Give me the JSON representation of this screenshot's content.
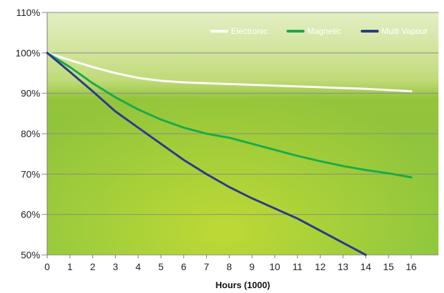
{
  "chart_data": {
    "type": "line",
    "title": "",
    "xlabel": "Hours (1000)",
    "ylabel": "",
    "xlim": [
      0,
      17
    ],
    "ylim": [
      50,
      110
    ],
    "x_ticks": [
      0,
      1,
      2,
      3,
      4,
      5,
      6,
      7,
      8,
      9,
      10,
      11,
      12,
      13,
      14,
      15,
      16
    ],
    "x_tick_labels": [
      "0",
      "1",
      "2",
      "3",
      "4",
      "5",
      "6",
      "7",
      "8",
      "9",
      "10",
      "11",
      "12",
      "13",
      "14",
      "15",
      "16"
    ],
    "y_ticks": [
      50,
      60,
      70,
      80,
      90,
      100,
      110
    ],
    "y_tick_labels": [
      "50%",
      "60%",
      "70%",
      "80%",
      "90%",
      "100%",
      "110%"
    ],
    "grid": true,
    "legend_position": "top-right",
    "series": [
      {
        "name": "Electronic",
        "color": "#ffffff",
        "x": [
          0,
          1,
          2,
          3,
          4,
          5,
          6,
          7,
          8,
          9,
          10,
          11,
          12,
          13,
          14,
          15,
          16
        ],
        "y": [
          100,
          98.2,
          96.5,
          95.0,
          93.8,
          93.1,
          92.7,
          92.5,
          92.3,
          92.1,
          91.9,
          91.7,
          91.5,
          91.3,
          91.1,
          90.8,
          90.5
        ]
      },
      {
        "name": "Magnetic",
        "color": "#1aaa4a",
        "x": [
          0,
          1,
          2,
          3,
          4,
          5,
          6,
          7,
          8,
          9,
          10,
          11,
          12,
          13,
          14,
          15,
          16
        ],
        "y": [
          100,
          96.5,
          92.5,
          89.0,
          86.0,
          83.5,
          81.5,
          80.0,
          79.0,
          77.5,
          76.0,
          74.5,
          73.2,
          72.0,
          71.0,
          70.2,
          69.2
        ]
      },
      {
        "name": "Multi Vapour",
        "color": "#2a3a8c",
        "x": [
          0,
          1,
          2,
          3,
          4,
          5,
          6,
          7,
          8,
          9,
          10,
          11,
          12,
          13,
          14
        ],
        "y": [
          100,
          95.3,
          90.5,
          85.5,
          81.5,
          77.5,
          73.5,
          70.0,
          66.8,
          64.0,
          61.5,
          59.0,
          56.0,
          53.0,
          50.0
        ]
      }
    ]
  }
}
